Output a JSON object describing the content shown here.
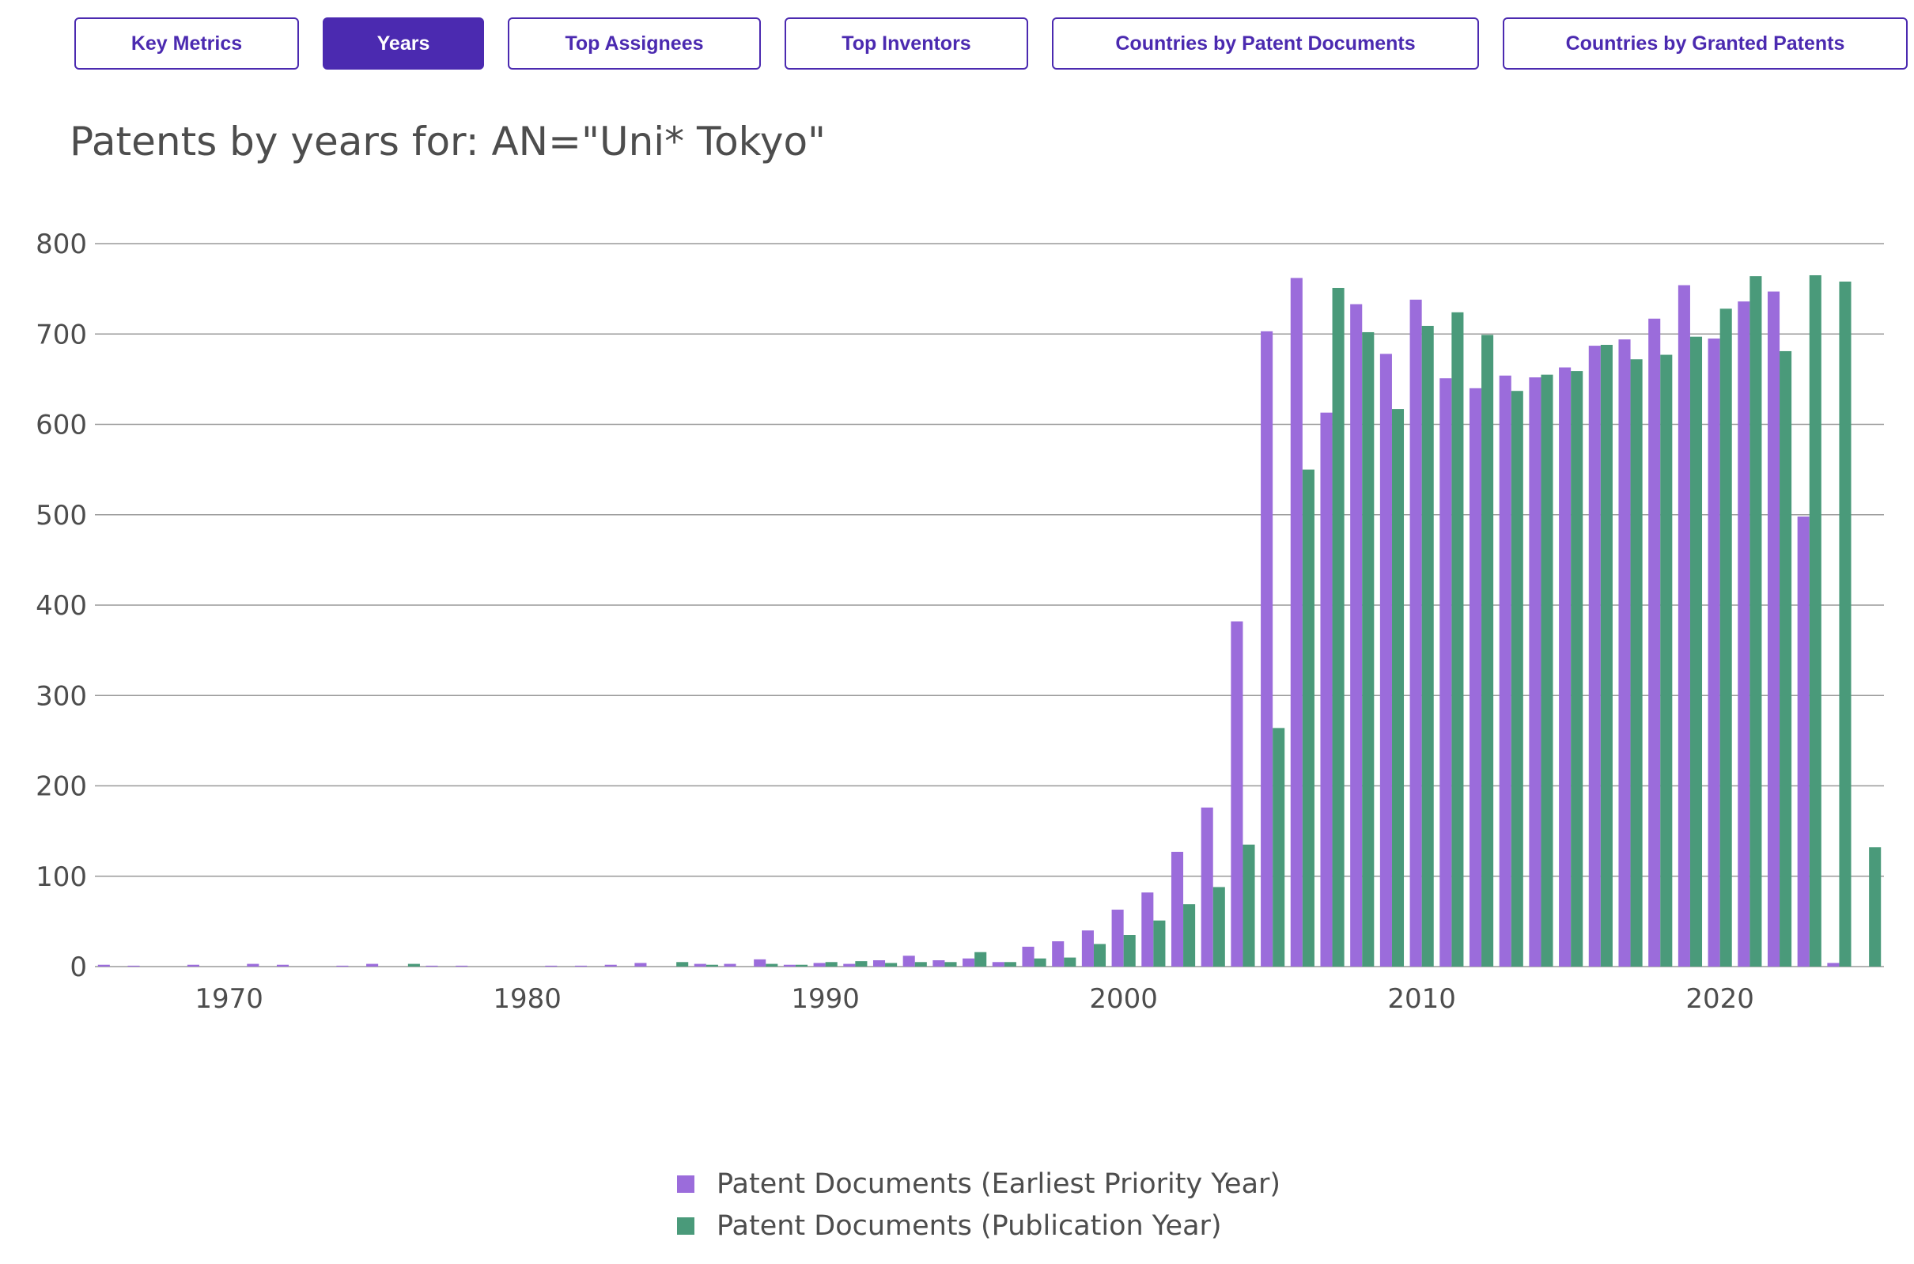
{
  "tabs": [
    {
      "label": "Key Metrics",
      "active": false
    },
    {
      "label": "Years",
      "active": true
    },
    {
      "label": "Top Assignees",
      "active": false
    },
    {
      "label": "Top Inventors",
      "active": false
    },
    {
      "label": "Countries by Patent Documents",
      "active": false
    },
    {
      "label": "Countries by Granted Patents",
      "active": false
    }
  ],
  "colors": {
    "accent": "#4b2ab0",
    "priority": "#9b6cdb",
    "publication": "#4a9a7a",
    "grid": "#9a9a9a",
    "text": "#4d4d4d"
  },
  "chart_data": {
    "type": "bar",
    "title": "Patents by years for: AN=\"Uni* Tokyo\"",
    "xlabel": "",
    "ylabel": "",
    "ylim": [
      0,
      800
    ],
    "xlim": [
      1965.5,
      2025.5
    ],
    "yticks": [
      0,
      100,
      200,
      300,
      400,
      500,
      600,
      700,
      800
    ],
    "xticks": [
      1970,
      1980,
      1990,
      2000,
      2010,
      2020
    ],
    "grid": true,
    "legend_position": "bottom-center",
    "series": [
      {
        "name": "Patent Documents (Earliest Priority Year)",
        "color": "#9b6cdb",
        "points": [
          [
            1966,
            2
          ],
          [
            1967,
            1
          ],
          [
            1969,
            2
          ],
          [
            1971,
            3
          ],
          [
            1972,
            2
          ],
          [
            1974,
            1
          ],
          [
            1975,
            3
          ],
          [
            1977,
            1
          ],
          [
            1978,
            1
          ],
          [
            1981,
            1
          ],
          [
            1982,
            1
          ],
          [
            1983,
            2
          ],
          [
            1984,
            4
          ],
          [
            1986,
            3
          ],
          [
            1987,
            3
          ],
          [
            1988,
            8
          ],
          [
            1989,
            2
          ],
          [
            1990,
            4
          ],
          [
            1991,
            3
          ],
          [
            1992,
            7
          ],
          [
            1993,
            12
          ],
          [
            1994,
            7
          ],
          [
            1995,
            9
          ],
          [
            1996,
            5
          ],
          [
            1997,
            22
          ],
          [
            1998,
            28
          ],
          [
            1999,
            40
          ],
          [
            2000,
            63
          ],
          [
            2001,
            82
          ],
          [
            2002,
            127
          ],
          [
            2003,
            176
          ],
          [
            2004,
            382
          ],
          [
            2005,
            703
          ],
          [
            2006,
            762
          ],
          [
            2007,
            613
          ],
          [
            2008,
            733
          ],
          [
            2009,
            678
          ],
          [
            2010,
            738
          ],
          [
            2011,
            651
          ],
          [
            2012,
            640
          ],
          [
            2013,
            654
          ],
          [
            2014,
            652
          ],
          [
            2015,
            663
          ],
          [
            2016,
            687
          ],
          [
            2017,
            694
          ],
          [
            2018,
            717
          ],
          [
            2019,
            754
          ],
          [
            2020,
            695
          ],
          [
            2021,
            736
          ],
          [
            2022,
            747
          ],
          [
            2023,
            498
          ],
          [
            2024,
            4
          ]
        ]
      },
      {
        "name": "Patent Documents (Publication Year)",
        "color": "#4a9a7a",
        "points": [
          [
            1976,
            3
          ],
          [
            1985,
            5
          ],
          [
            1986,
            2
          ],
          [
            1988,
            3
          ],
          [
            1989,
            2
          ],
          [
            1990,
            5
          ],
          [
            1991,
            6
          ],
          [
            1992,
            4
          ],
          [
            1993,
            5
          ],
          [
            1994,
            5
          ],
          [
            1995,
            16
          ],
          [
            1996,
            5
          ],
          [
            1997,
            9
          ],
          [
            1998,
            10
          ],
          [
            1999,
            25
          ],
          [
            2000,
            35
          ],
          [
            2001,
            51
          ],
          [
            2002,
            69
          ],
          [
            2003,
            88
          ],
          [
            2004,
            135
          ],
          [
            2005,
            264
          ],
          [
            2006,
            550
          ],
          [
            2007,
            751
          ],
          [
            2008,
            702
          ],
          [
            2009,
            617
          ],
          [
            2010,
            709
          ],
          [
            2011,
            724
          ],
          [
            2012,
            699
          ],
          [
            2013,
            637
          ],
          [
            2014,
            655
          ],
          [
            2015,
            659
          ],
          [
            2016,
            688
          ],
          [
            2017,
            672
          ],
          [
            2018,
            677
          ],
          [
            2019,
            697
          ],
          [
            2020,
            728
          ],
          [
            2021,
            764
          ],
          [
            2022,
            681
          ],
          [
            2023,
            765
          ],
          [
            2024,
            758
          ],
          [
            2025,
            132
          ]
        ]
      }
    ]
  }
}
